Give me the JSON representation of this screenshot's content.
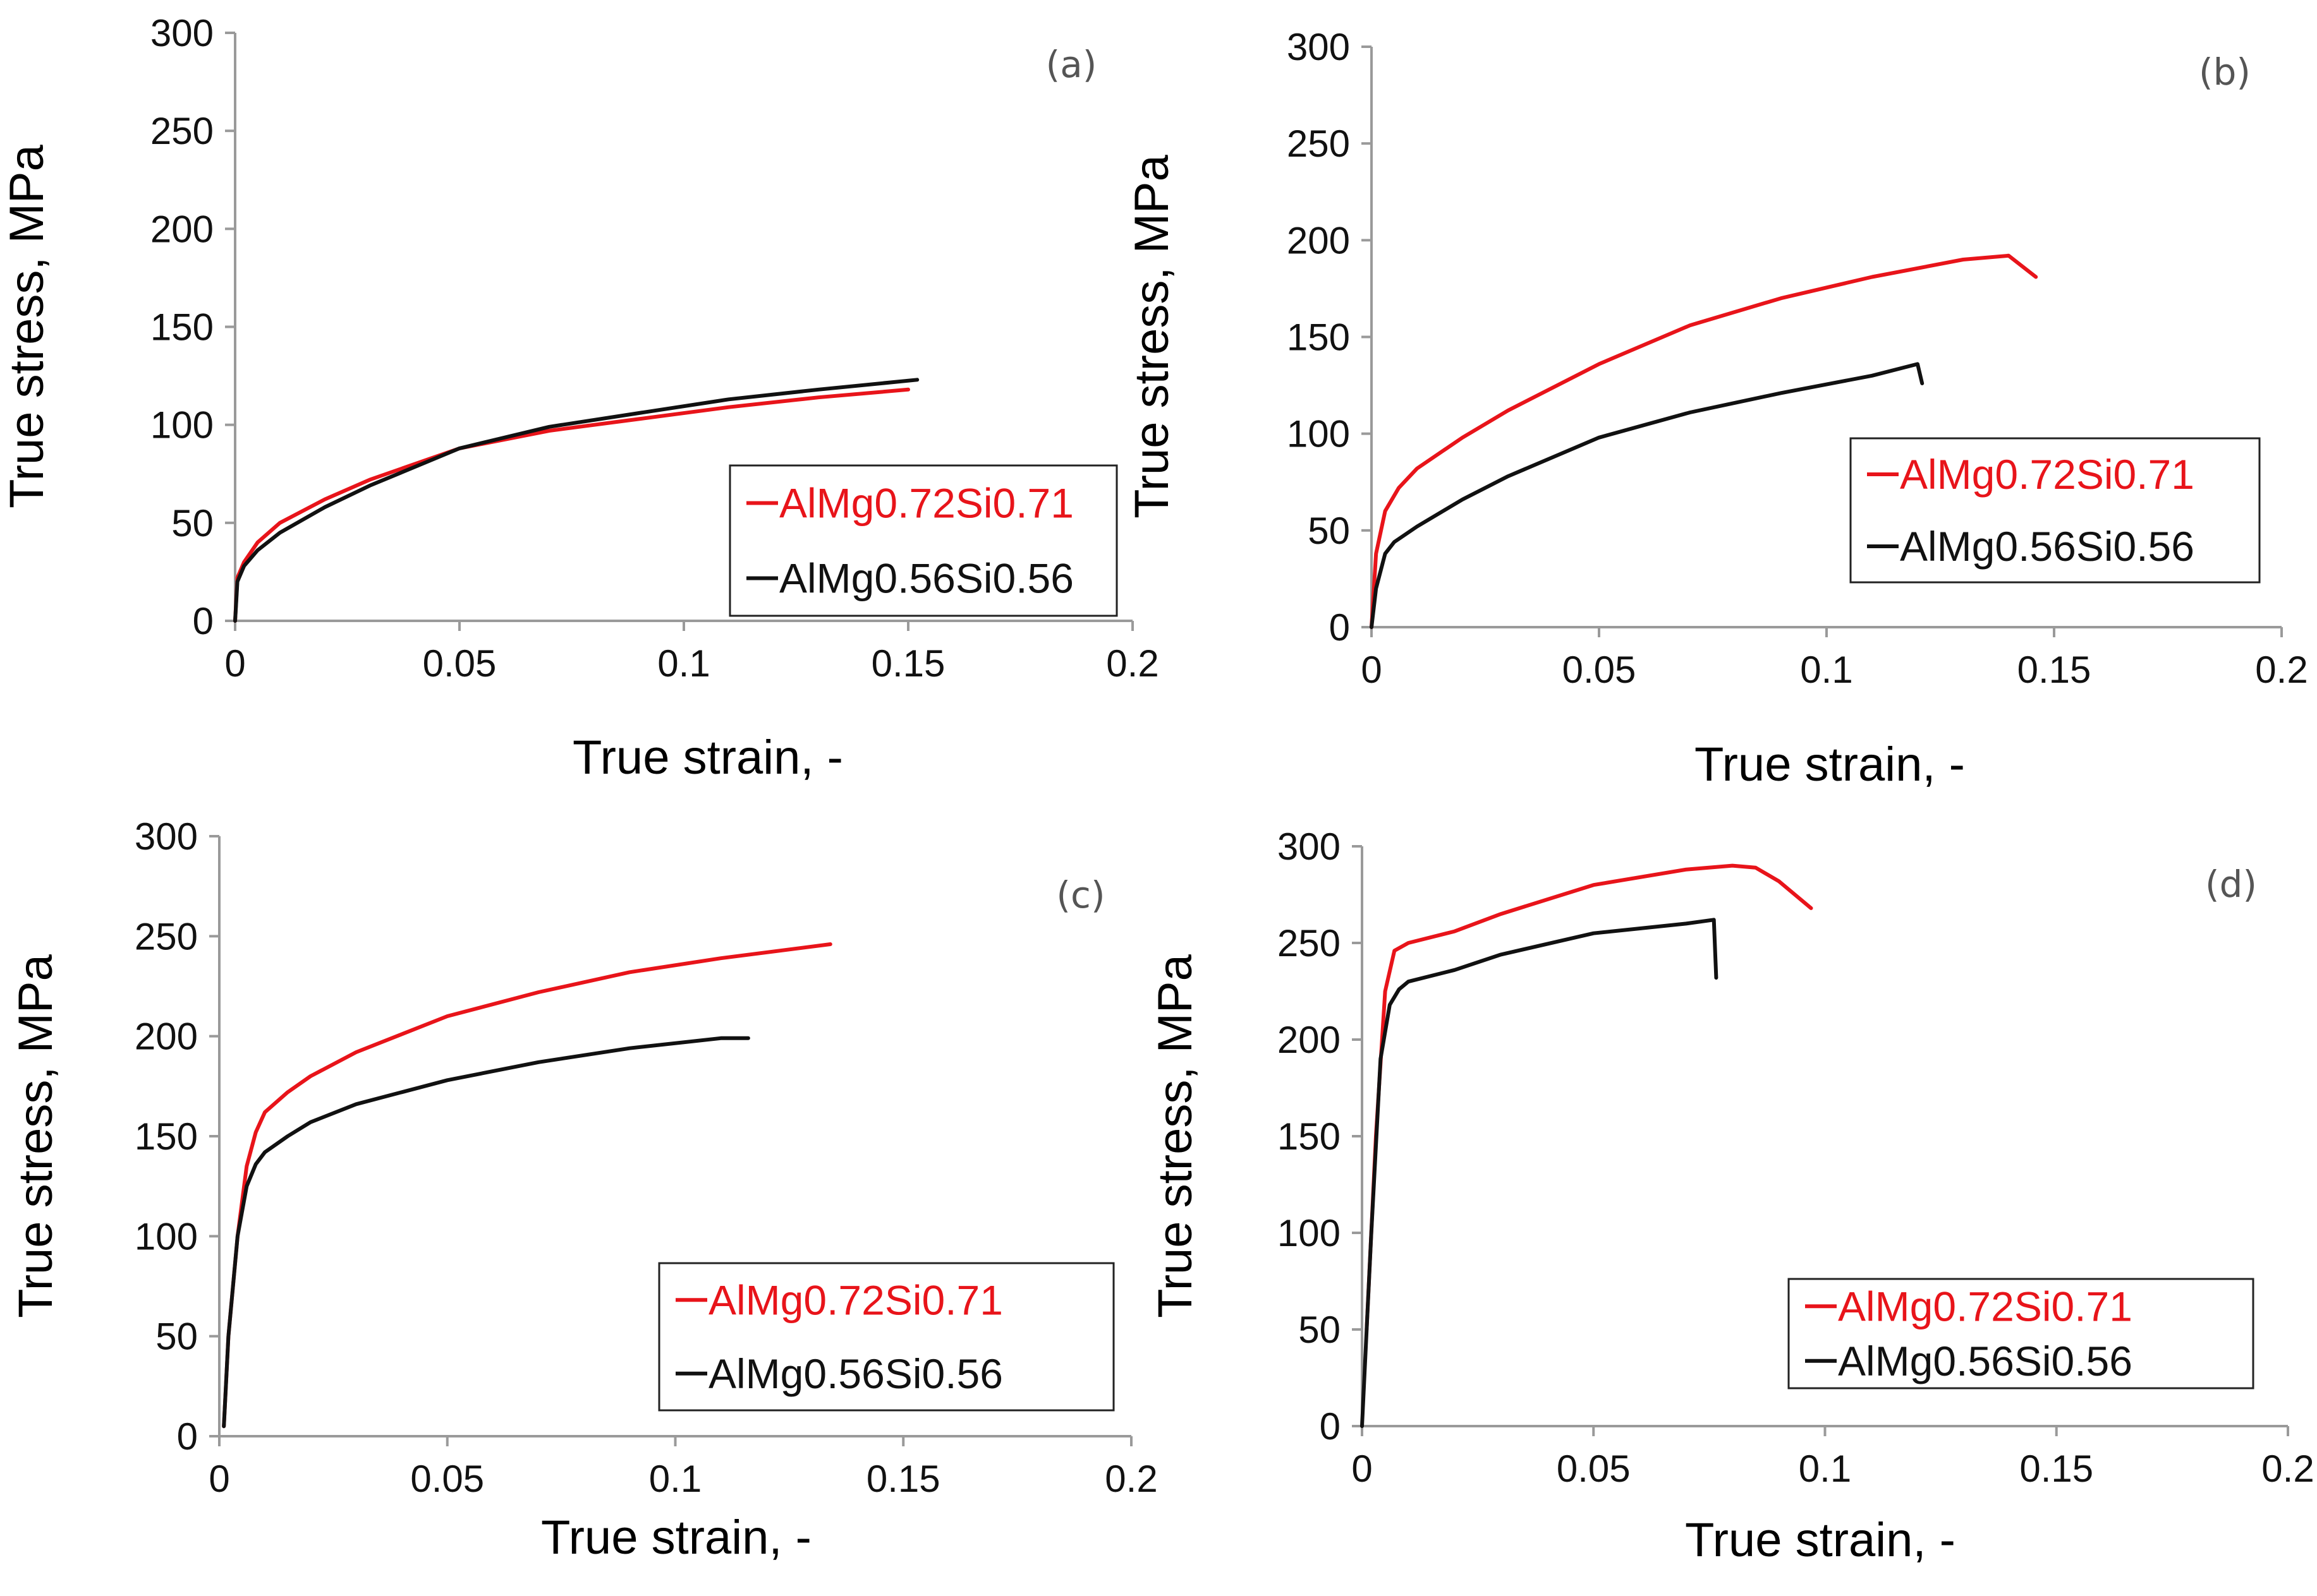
{
  "figure": {
    "colors": {
      "red_series": "#e8141a",
      "black_series": "#111111",
      "axis": "#9a9a9a"
    }
  },
  "chart_data": [
    {
      "type": "line",
      "panel_label": "(a)",
      "xlabel": "True strain, -",
      "ylabel": "True stress, MPa",
      "xlim": [
        0,
        0.2
      ],
      "ylim": [
        0,
        300
      ],
      "xticks": [
        "0",
        "0.05",
        "0.1",
        "0.15",
        "0.2"
      ],
      "yticks": [
        "0",
        "50",
        "100",
        "150",
        "200",
        "250",
        "300"
      ],
      "legend_position": "bottom-right",
      "grid": false,
      "series": [
        {
          "name": "AlMg0.72Si0.71",
          "color": "#e8141a",
          "x": [
            0,
            0.0005,
            0.002,
            0.005,
            0.01,
            0.02,
            0.03,
            0.05,
            0.07,
            0.09,
            0.11,
            0.13,
            0.15
          ],
          "y": [
            0,
            22,
            30,
            40,
            50,
            62,
            72,
            88,
            97,
            103,
            109,
            114,
            118
          ]
        },
        {
          "name": "AlMg0.56Si0.56",
          "color": "#111111",
          "x": [
            0,
            0.0005,
            0.002,
            0.005,
            0.01,
            0.02,
            0.03,
            0.05,
            0.07,
            0.09,
            0.11,
            0.13,
            0.152
          ],
          "y": [
            0,
            20,
            28,
            36,
            45,
            58,
            69,
            88,
            99,
            106,
            113,
            118,
            123
          ]
        }
      ]
    },
    {
      "type": "line",
      "panel_label": "(b)",
      "xlabel": "True strain, -",
      "ylabel": "True stress, MPa",
      "xlim": [
        0,
        0.2
      ],
      "ylim": [
        0,
        300
      ],
      "xticks": [
        "0",
        "0.05",
        "0.1",
        "0.15",
        "0.2"
      ],
      "yticks": [
        "0",
        "50",
        "100",
        "150",
        "200",
        "250",
        "300"
      ],
      "legend_position": "right",
      "grid": false,
      "series": [
        {
          "name": "AlMg0.72Si0.71",
          "color": "#e8141a",
          "x": [
            0,
            0.001,
            0.003,
            0.006,
            0.01,
            0.02,
            0.03,
            0.05,
            0.07,
            0.09,
            0.11,
            0.13,
            0.14,
            0.146
          ],
          "y": [
            0,
            38,
            60,
            72,
            82,
            98,
            112,
            136,
            156,
            170,
            181,
            190,
            192,
            181
          ]
        },
        {
          "name": "AlMg0.56Si0.56",
          "color": "#111111",
          "x": [
            0,
            0.001,
            0.003,
            0.005,
            0.01,
            0.02,
            0.03,
            0.05,
            0.07,
            0.09,
            0.11,
            0.12,
            0.121
          ],
          "y": [
            0,
            20,
            38,
            44,
            52,
            66,
            78,
            98,
            111,
            121,
            130,
            136,
            126
          ]
        }
      ]
    },
    {
      "type": "line",
      "panel_label": "(c)",
      "xlabel": "True strain, -",
      "ylabel": "True stress, MPa",
      "xlim": [
        0,
        0.2
      ],
      "ylim": [
        0,
        300
      ],
      "xticks": [
        "0",
        "0.05",
        "0.1",
        "0.15",
        "0.2"
      ],
      "yticks": [
        "0",
        "50",
        "100",
        "150",
        "200",
        "250",
        "300"
      ],
      "legend_position": "bottom-right",
      "grid": false,
      "series": [
        {
          "name": "AlMg0.72Si0.71",
          "color": "#e8141a",
          "x": [
            0.001,
            0.002,
            0.004,
            0.006,
            0.008,
            0.01,
            0.015,
            0.02,
            0.03,
            0.05,
            0.07,
            0.09,
            0.11,
            0.134
          ],
          "y": [
            5,
            50,
            100,
            135,
            152,
            162,
            172,
            180,
            192,
            210,
            222,
            232,
            239,
            246
          ]
        },
        {
          "name": "AlMg0.56Si0.56",
          "color": "#111111",
          "x": [
            0.001,
            0.002,
            0.004,
            0.006,
            0.008,
            0.01,
            0.015,
            0.02,
            0.03,
            0.05,
            0.07,
            0.09,
            0.11,
            0.116
          ],
          "y": [
            5,
            50,
            100,
            125,
            136,
            142,
            150,
            157,
            166,
            178,
            187,
            194,
            199,
            199
          ]
        }
      ]
    },
    {
      "type": "line",
      "panel_label": "(d)",
      "xlabel": "True strain, -",
      "ylabel": "True stress, MPa",
      "xlim": [
        0,
        0.2
      ],
      "ylim": [
        0,
        300
      ],
      "xticks": [
        "0",
        "0.05",
        "0.1",
        "0.15",
        "0.2"
      ],
      "yticks": [
        "0",
        "50",
        "100",
        "150",
        "200",
        "250",
        "300"
      ],
      "legend_position": "bottom-right",
      "grid": false,
      "series": [
        {
          "name": "AlMg0.72Si0.71",
          "color": "#e8141a",
          "x": [
            0.001,
            0.003,
            0.005,
            0.007,
            0.01,
            0.02,
            0.03,
            0.05,
            0.07,
            0.08,
            0.085,
            0.09,
            0.097
          ],
          "y": [
            50,
            150,
            225,
            246,
            250,
            256,
            265,
            280,
            288,
            290,
            289,
            282,
            268
          ]
        },
        {
          "name": "AlMg0.56Si0.56",
          "color": "#111111",
          "x": [
            0,
            0.002,
            0.004,
            0.006,
            0.008,
            0.01,
            0.02,
            0.03,
            0.05,
            0.07,
            0.076,
            0.0765
          ],
          "y": [
            0,
            100,
            190,
            218,
            226,
            230,
            236,
            244,
            255,
            260,
            262,
            232
          ]
        }
      ]
    }
  ]
}
